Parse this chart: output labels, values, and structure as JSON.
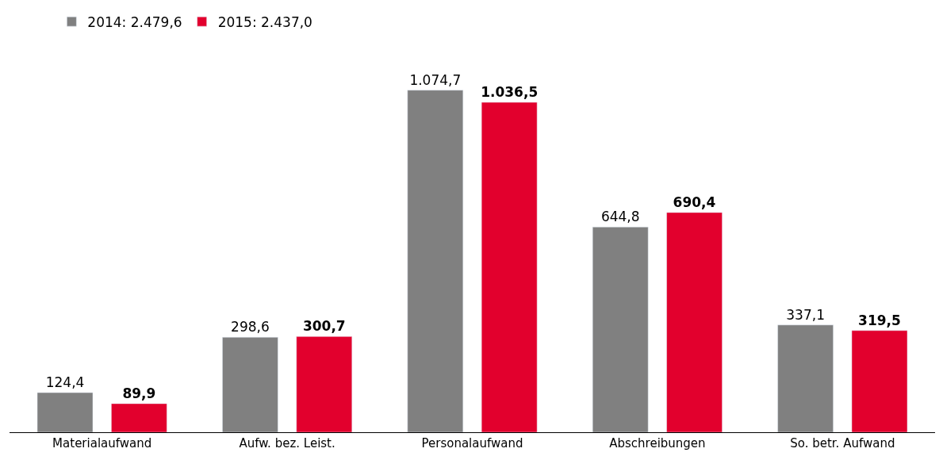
{
  "chart_data": {
    "type": "bar",
    "categories": [
      "Materialaufwand",
      "Aufw. bez. Leist.",
      "Personalaufwand",
      "Abschreibungen",
      "So. betr. Aufwand"
    ],
    "series": [
      {
        "name": "2014: 2.479,6",
        "color": "#808080",
        "values": [
          124.4,
          298.6,
          1074.7,
          644.8,
          337.1
        ],
        "value_labels": [
          "124,4",
          "298,6",
          "1.074,7",
          "644,8",
          "337,1"
        ]
      },
      {
        "name": "2015: 2.437,0",
        "color": "#e2002d",
        "values": [
          89.9,
          300.7,
          1036.5,
          690.4,
          319.5
        ],
        "value_labels": [
          "89,9",
          "300,7",
          "1.036,5",
          "690,4",
          "319,5"
        ]
      }
    ],
    "legend": "top left"
  }
}
